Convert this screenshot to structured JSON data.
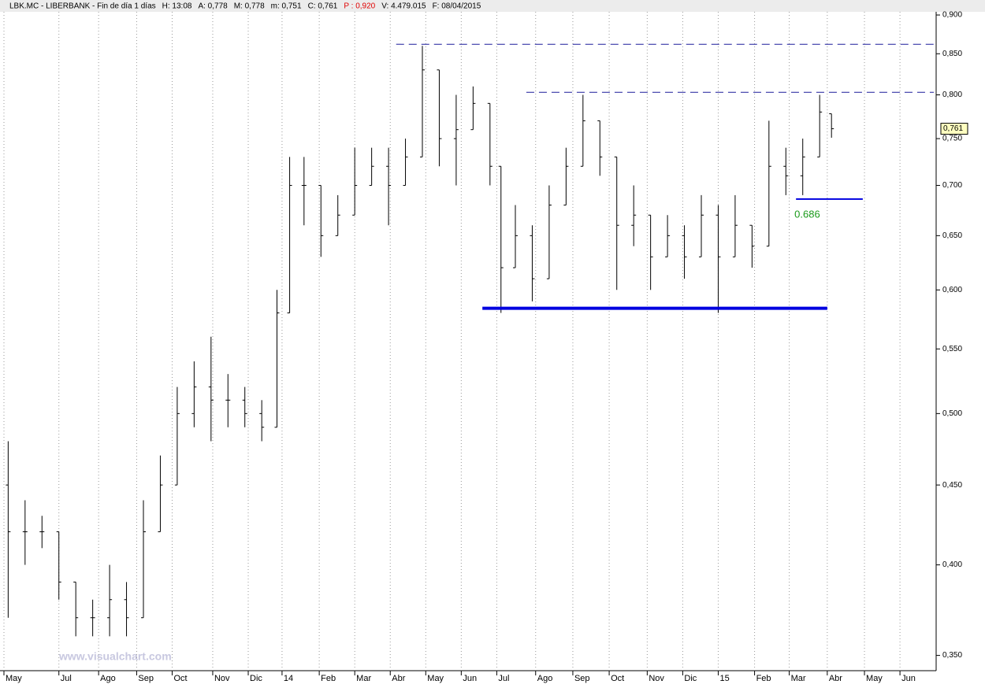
{
  "chart_data": {
    "type": "ohlc",
    "header": [
      {
        "text": "LBK.MC - LIBERBANK - Fin de día 1 días",
        "color": "#000000"
      },
      {
        "text": "H: 13:08",
        "color": "#000000"
      },
      {
        "text": "A: 0,778",
        "color": "#000000"
      },
      {
        "text": "M: 0,778",
        "color": "#000000"
      },
      {
        "text": "m: 0,751",
        "color": "#000000"
      },
      {
        "text": "C: 0,761",
        "color": "#000000"
      },
      {
        "text": "P : 0,920",
        "color": "#e00000"
      },
      {
        "text": "V: 4.479.015",
        "color": "#000000"
      },
      {
        "text": "F: 08/04/2015",
        "color": "#000000"
      }
    ],
    "watermark": "www.visualchart.com",
    "log_scale": true,
    "grid": true,
    "color": "#000000",
    "x": [
      0.5,
      2.5,
      4.5,
      6.5,
      8.5,
      10.5,
      12.5,
      14.5,
      16.5,
      18.5,
      20.5,
      22.5,
      24.5,
      26.5,
      28.5,
      30.5,
      32.3,
      33.8,
      35.5,
      37.5,
      39.5,
      41.5,
      43.5,
      45.5,
      47.5,
      49.5,
      51.5,
      53.5,
      55.5,
      57.5,
      58.8,
      60.5,
      62.5,
      64.5,
      66.5,
      68.5,
      70.5,
      72.5,
      74.5,
      76.5,
      78.5,
      80.5,
      82.5,
      84.5,
      86.5,
      88.5,
      90.5,
      92.5,
      94.5,
      96.5,
      97.9
    ],
    "open": [
      0.45,
      0.42,
      0.42,
      0.42,
      0.39,
      0.37,
      0.37,
      0.38,
      0.37,
      0.42,
      0.45,
      0.5,
      0.52,
      0.51,
      0.51,
      0.5,
      0.49,
      0.58,
      0.7,
      0.7,
      0.65,
      0.67,
      0.7,
      0.72,
      0.7,
      0.73,
      0.83,
      0.75,
      0.76,
      0.79,
      0.72,
      0.62,
      0.65,
      0.61,
      0.68,
      0.72,
      0.77,
      0.73,
      0.66,
      0.67,
      0.63,
      0.65,
      0.63,
      0.67,
      0.63,
      0.66,
      0.64,
      0.72,
      0.71,
      0.73,
      0.778
    ],
    "high": [
      0.48,
      0.44,
      0.43,
      0.42,
      0.39,
      0.38,
      0.4,
      0.39,
      0.44,
      0.47,
      0.52,
      0.54,
      0.56,
      0.53,
      0.52,
      0.51,
      0.6,
      0.73,
      0.73,
      0.7,
      0.69,
      0.74,
      0.74,
      0.74,
      0.75,
      0.86,
      0.83,
      0.8,
      0.81,
      0.79,
      0.72,
      0.68,
      0.66,
      0.7,
      0.74,
      0.8,
      0.77,
      0.73,
      0.7,
      0.67,
      0.67,
      0.66,
      0.69,
      0.68,
      0.69,
      0.66,
      0.77,
      0.74,
      0.75,
      0.8,
      0.778
    ],
    "low": [
      0.37,
      0.4,
      0.41,
      0.38,
      0.36,
      0.36,
      0.36,
      0.36,
      0.37,
      0.42,
      0.45,
      0.49,
      0.48,
      0.49,
      0.49,
      0.48,
      0.49,
      0.58,
      0.66,
      0.63,
      0.65,
      0.67,
      0.7,
      0.66,
      0.7,
      0.73,
      0.72,
      0.7,
      0.76,
      0.7,
      0.58,
      0.62,
      0.59,
      0.61,
      0.68,
      0.72,
      0.71,
      0.6,
      0.64,
      0.6,
      0.63,
      0.61,
      0.63,
      0.58,
      0.63,
      0.62,
      0.64,
      0.69,
      0.69,
      0.73,
      0.751
    ],
    "close": [
      0.42,
      0.42,
      0.42,
      0.39,
      0.37,
      0.37,
      0.38,
      0.37,
      0.42,
      0.45,
      0.5,
      0.52,
      0.51,
      0.51,
      0.5,
      0.49,
      0.58,
      0.7,
      0.7,
      0.65,
      0.67,
      0.7,
      0.72,
      0.7,
      0.73,
      0.83,
      0.75,
      0.76,
      0.79,
      0.72,
      0.62,
      0.65,
      0.61,
      0.68,
      0.72,
      0.77,
      0.73,
      0.66,
      0.67,
      0.63,
      0.65,
      0.63,
      0.67,
      0.63,
      0.66,
      0.64,
      0.72,
      0.71,
      0.73,
      0.78,
      0.761
    ],
    "last_price": {
      "value": 0.761,
      "label": "0,761"
    },
    "lines": [
      {
        "y": 0.862,
        "x": [
          46.4,
          110
        ],
        "style": "dashed",
        "color": "#1a1a9a"
      },
      {
        "y": 0.803,
        "x": [
          61.8,
          110
        ],
        "style": "dashed",
        "color": "#1a1a9a"
      },
      {
        "y": 0.584,
        "x": [
          56.6,
          97.4
        ],
        "style": "thick",
        "color": "#0000e0"
      },
      {
        "y": 0.686,
        "x": [
          93.7,
          101.6
        ],
        "style": "solid",
        "color": "#0000e0",
        "label_color": "#1a9a1a"
      }
    ],
    "xlim": [
      0,
      110
    ],
    "xticks": [
      {
        "value": 0,
        "label": "May"
      },
      {
        "value": 6.5,
        "label": "Jul"
      },
      {
        "value": 11.2,
        "label": "Ago"
      },
      {
        "value": 15.7,
        "label": "Sep"
      },
      {
        "value": 19.9,
        "label": "Oct"
      },
      {
        "value": 24.7,
        "label": "Nov"
      },
      {
        "value": 28.9,
        "label": "Dic"
      },
      {
        "value": 32.9,
        "label": "14"
      },
      {
        "value": 37.3,
        "label": "Feb"
      },
      {
        "value": 41.5,
        "label": "Mar"
      },
      {
        "value": 45.7,
        "label": "Abr"
      },
      {
        "value": 49.9,
        "label": "May"
      },
      {
        "value": 54.1,
        "label": "Jun"
      },
      {
        "value": 58.3,
        "label": "Jul"
      },
      {
        "value": 62.9,
        "label": "Ago"
      },
      {
        "value": 67.3,
        "label": "Sep"
      },
      {
        "value": 71.6,
        "label": "Oct"
      },
      {
        "value": 76.1,
        "label": "Nov"
      },
      {
        "value": 80.3,
        "label": "Dic"
      },
      {
        "value": 84.5,
        "label": "15"
      },
      {
        "value": 88.8,
        "label": "Feb"
      },
      {
        "value": 92.9,
        "label": "Mar"
      },
      {
        "value": 97.4,
        "label": "Abr"
      },
      {
        "value": 101.8,
        "label": "May"
      },
      {
        "value": 106.0,
        "label": "Jun"
      }
    ],
    "ylim": [
      0.343,
      0.9095
    ],
    "yticks": [
      {
        "value": 0.35,
        "label": "0,350"
      },
      {
        "value": 0.4,
        "label": "0,400"
      },
      {
        "value": 0.45,
        "label": "0,450"
      },
      {
        "value": 0.5,
        "label": "0,500"
      },
      {
        "value": 0.55,
        "label": "0,550"
      },
      {
        "value": 0.6,
        "label": "0,600"
      },
      {
        "value": 0.65,
        "label": "0,650"
      },
      {
        "value": 0.7,
        "label": "0,700"
      },
      {
        "value": 0.75,
        "label": "0,750"
      },
      {
        "value": 0.8,
        "label": "0,800"
      },
      {
        "value": 0.85,
        "label": "0,850"
      },
      {
        "value": 0.9,
        "label": "0,900"
      }
    ]
  }
}
